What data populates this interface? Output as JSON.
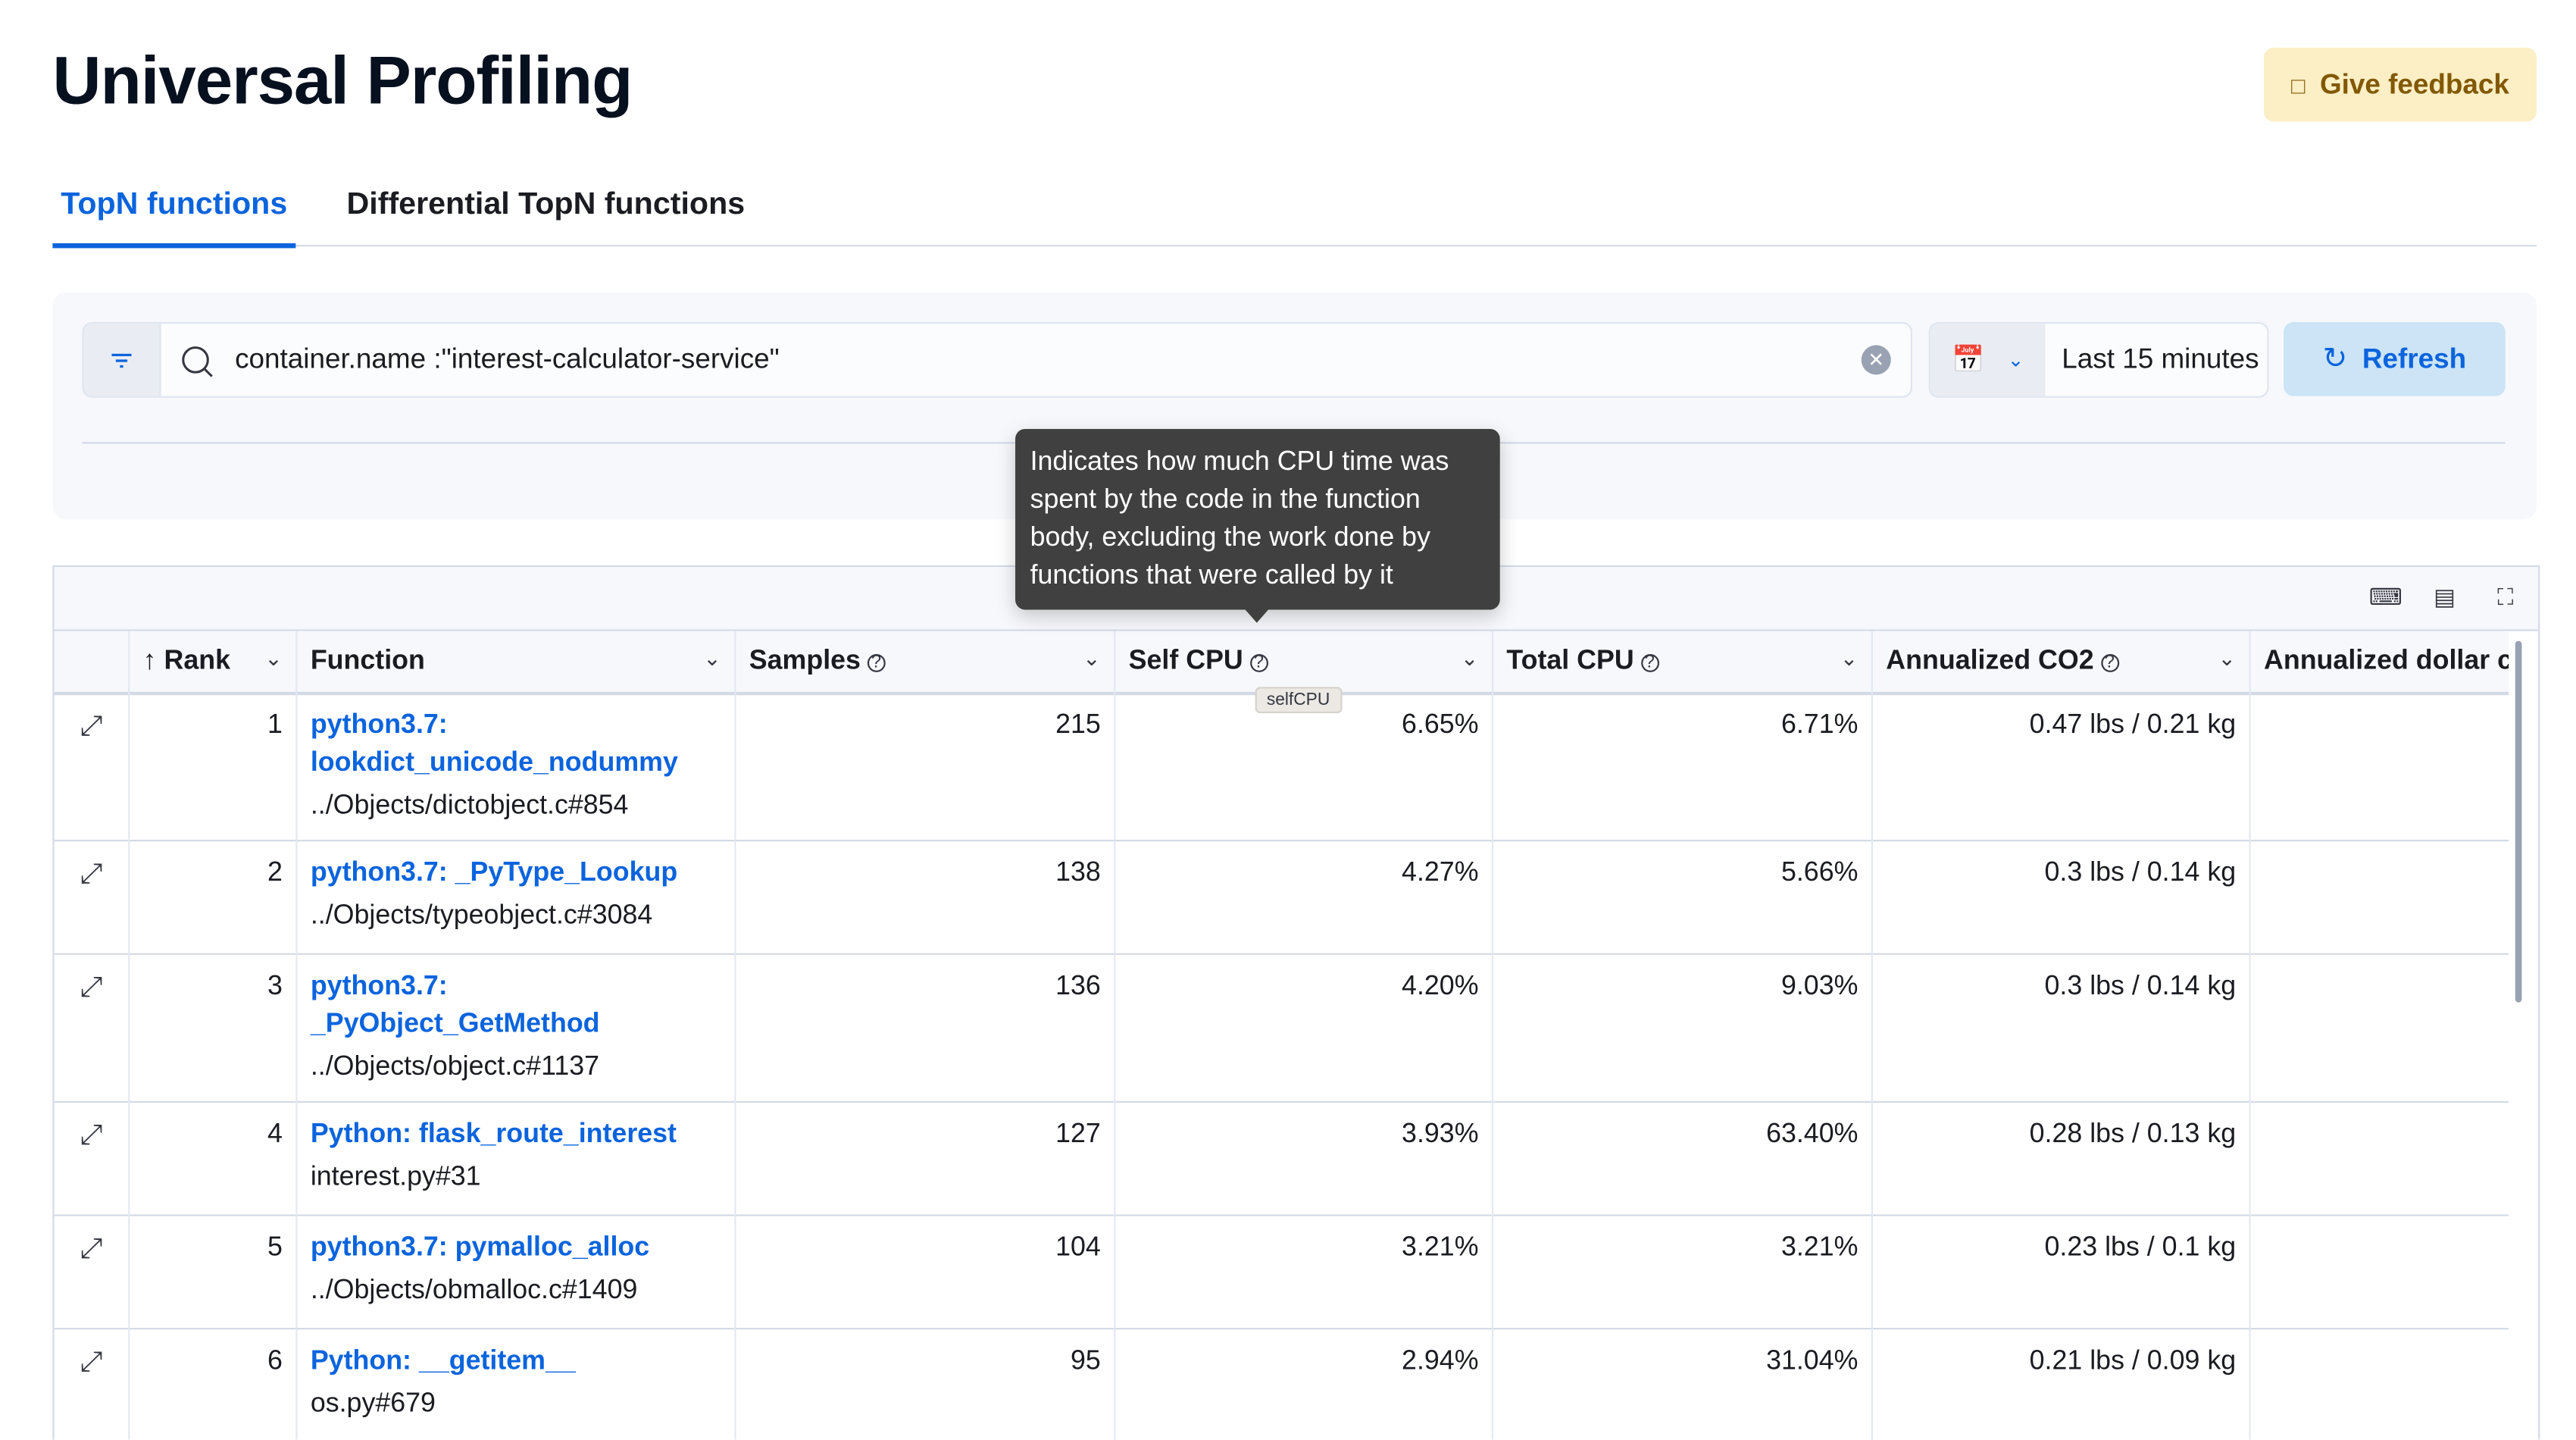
{
  "page": {
    "title": "Universal Profiling",
    "feedback_label": "Give feedback"
  },
  "tabs": [
    {
      "label": "TopN functions",
      "active": true
    },
    {
      "label": "Differential TopN functions",
      "active": false
    }
  ],
  "search": {
    "query": "container.name :\"interest-calculator-service\""
  },
  "date_picker": {
    "label": "Last 15 minutes"
  },
  "refresh_label": "Refresh",
  "tooltip": {
    "lines": [
      "Indicates how much CPU time was",
      "spent by the code in the function",
      "body, excluding the work done by",
      "functions that were called by it"
    ],
    "hover_label": "selfCPU"
  },
  "table": {
    "columns": [
      "Rank",
      "Function",
      "Samples",
      "Self CPU",
      "Total CPU",
      "Annualized CO2",
      "Annualized dollar c"
    ],
    "rows": [
      {
        "rank": "1",
        "function": [
          "python3.7:",
          "lookdict_unicode_nodummy"
        ],
        "source": "../Objects/dictobject.c#854",
        "samples": "215",
        "self_cpu": "6.65%",
        "total_cpu": "6.71%",
        "co2": "0.47 lbs / 0.21 kg"
      },
      {
        "rank": "2",
        "function": [
          "python3.7: _PyType_Lookup"
        ],
        "source": "../Objects/typeobject.c#3084",
        "samples": "138",
        "self_cpu": "4.27%",
        "total_cpu": "5.66%",
        "co2": "0.3 lbs / 0.14 kg"
      },
      {
        "rank": "3",
        "function": [
          "python3.7:",
          "_PyObject_GetMethod"
        ],
        "source": "../Objects/object.c#1137",
        "samples": "136",
        "self_cpu": "4.20%",
        "total_cpu": "9.03%",
        "co2": "0.3 lbs / 0.14 kg"
      },
      {
        "rank": "4",
        "function": [
          "Python: flask_route_interest"
        ],
        "source": "interest.py#31",
        "samples": "127",
        "self_cpu": "3.93%",
        "total_cpu": "63.40%",
        "co2": "0.28 lbs / 0.13 kg"
      },
      {
        "rank": "5",
        "function": [
          "python3.7: pymalloc_alloc"
        ],
        "source": "../Objects/obmalloc.c#1409",
        "samples": "104",
        "self_cpu": "3.21%",
        "total_cpu": "3.21%",
        "co2": "0.23 lbs / 0.1 kg"
      },
      {
        "rank": "6",
        "function": [
          "Python: __getitem__"
        ],
        "source": "os.py#679",
        "samples": "95",
        "self_cpu": "2.94%",
        "total_cpu": "31.04%",
        "co2": "0.21 lbs / 0.09 kg"
      }
    ]
  },
  "colors": {
    "accent": "#0b64dd",
    "feedback_bg": "#fcefc5",
    "refresh_bg": "#cce4f5",
    "tooltip_bg": "#404040"
  }
}
